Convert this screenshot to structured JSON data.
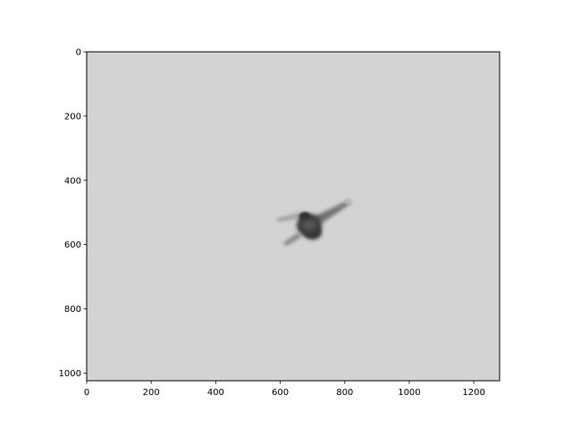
{
  "figure": {
    "background": "#ffffff",
    "image": {
      "description_color": "#d3d3d3",
      "x_range": [
        0,
        1280
      ],
      "y_range": [
        1024,
        0
      ]
    },
    "x_axis": {
      "ticks": [
        {
          "value": 0,
          "label": "0"
        },
        {
          "value": 200,
          "label": "200"
        },
        {
          "value": 400,
          "label": "400"
        },
        {
          "value": 600,
          "label": "600"
        },
        {
          "value": 800,
          "label": "800"
        },
        {
          "value": 1000,
          "label": "1000"
        },
        {
          "value": 1200,
          "label": "1200"
        }
      ]
    },
    "y_axis": {
      "ticks": [
        {
          "value": 0,
          "label": "0"
        },
        {
          "value": 200,
          "label": "200"
        },
        {
          "value": 400,
          "label": "400"
        },
        {
          "value": 600,
          "label": "600"
        },
        {
          "value": 800,
          "label": "800"
        },
        {
          "value": 1000,
          "label": "1000"
        }
      ]
    }
  }
}
